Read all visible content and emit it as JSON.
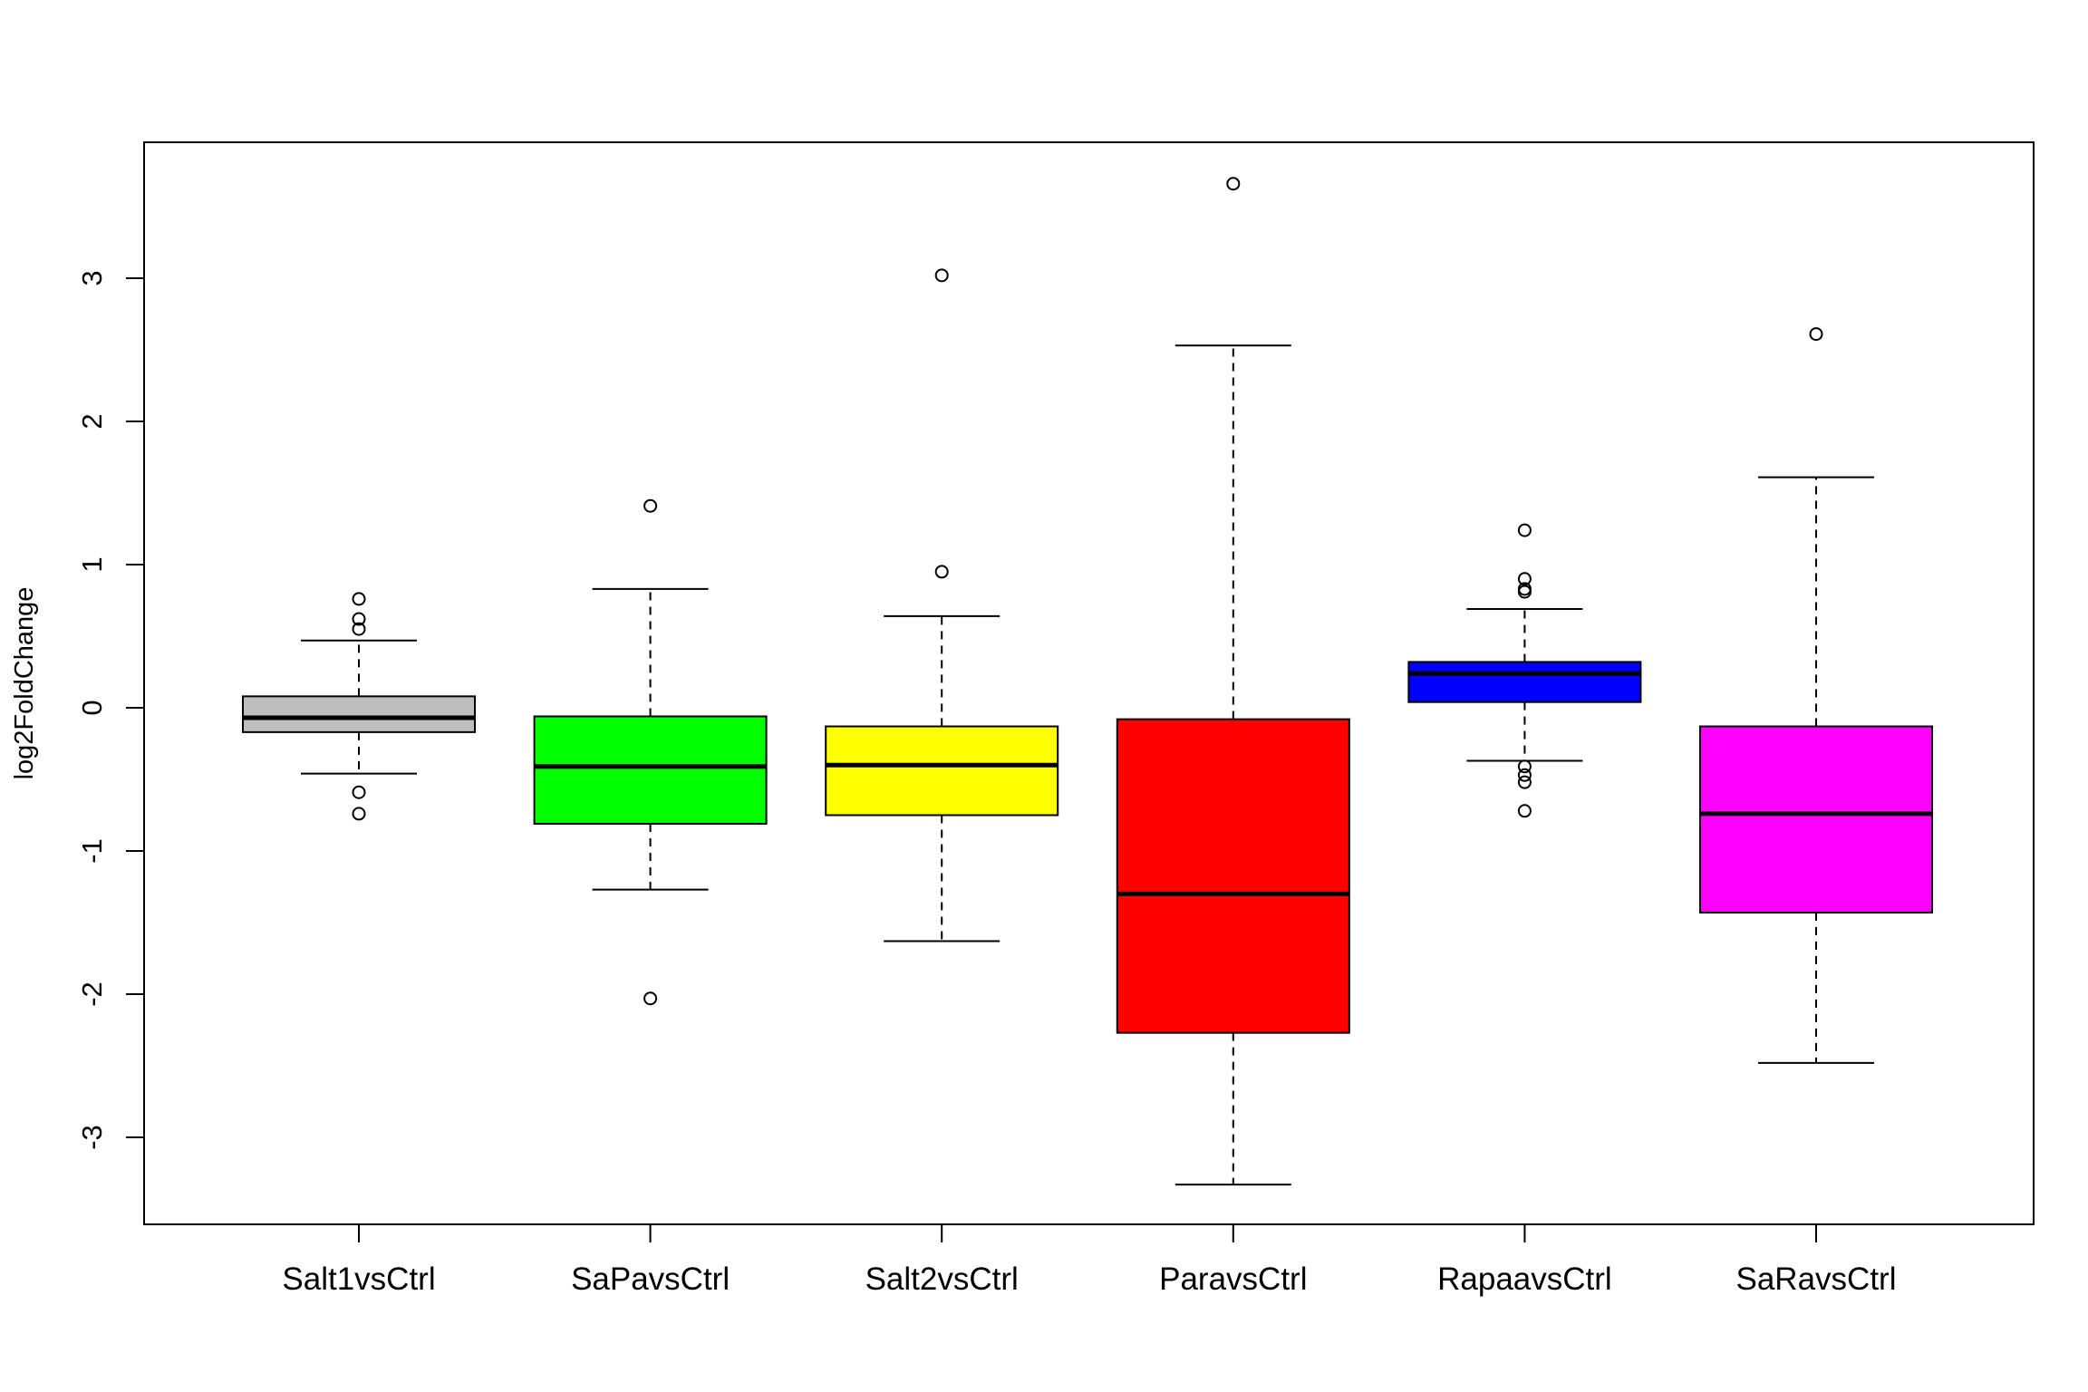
{
  "chart_data": {
    "type": "box",
    "title": "",
    "xlabel": "",
    "ylabel": "log2FoldChange",
    "ylim": [
      -3.6,
      3.95
    ],
    "yticks": [
      -3,
      -2,
      -1,
      0,
      1,
      2,
      3
    ],
    "grid": false,
    "legend": "none",
    "boxes": [
      {
        "category": "Salt1vsCtrl",
        "color": "#bebebe",
        "whisker_low": -0.46,
        "q1": -0.17,
        "median": -0.07,
        "q3": 0.08,
        "whisker_high": 0.47,
        "outliers": [
          0.76,
          0.62,
          0.55,
          -0.59,
          -0.74
        ]
      },
      {
        "category": "SaPavsCtrl",
        "color": "#00ff00",
        "whisker_low": -1.27,
        "q1": -0.81,
        "median": -0.41,
        "q3": -0.06,
        "whisker_high": 0.83,
        "outliers": [
          1.41,
          -2.03
        ]
      },
      {
        "category": "Salt2vsCtrl",
        "color": "#ffff00",
        "whisker_low": -1.63,
        "q1": -0.75,
        "median": -0.4,
        "q3": -0.13,
        "whisker_high": 0.64,
        "outliers": [
          3.02,
          0.95
        ]
      },
      {
        "category": "ParavsCtrl",
        "color": "#ff0000",
        "whisker_low": -3.33,
        "q1": -2.27,
        "median": -1.3,
        "q3": -0.08,
        "whisker_high": 2.53,
        "outliers": [
          3.66
        ]
      },
      {
        "category": "RapaavsCtrl",
        "color": "#0000ff",
        "whisker_low": -0.37,
        "q1": 0.04,
        "median": 0.24,
        "q3": 0.32,
        "whisker_high": 0.69,
        "outliers": [
          1.24,
          0.9,
          0.83,
          0.81,
          -0.41,
          -0.47,
          -0.52,
          -0.72
        ]
      },
      {
        "category": "SaRavsCtrl",
        "color": "#ff00ff",
        "whisker_low": -2.48,
        "q1": -1.43,
        "median": -0.74,
        "q3": -0.13,
        "whisker_high": 1.61,
        "outliers": [
          2.61
        ]
      }
    ]
  }
}
